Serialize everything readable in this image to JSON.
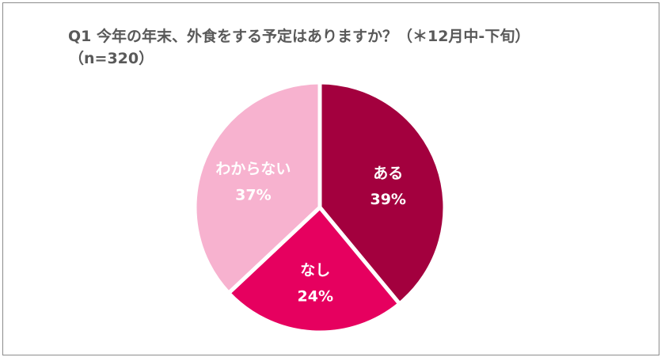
{
  "chart_data": {
    "type": "pie",
    "title": "Q1 今年の年末、外食をする予定はありますか？（＊12月中-下旬）",
    "subtitle": "（n=320）",
    "slices": [
      {
        "label": "ある",
        "value_label": "39%",
        "value": 39,
        "color": "#a3003e",
        "text_color": "#ffffff"
      },
      {
        "label": "なし",
        "value_label": "24%",
        "value": 24,
        "color": "#e6005f",
        "text_color": "#ffffff"
      },
      {
        "label": "わからない",
        "value_label": "37%",
        "value": 37,
        "color": "#f7b2cf",
        "text_color": "#ffffff"
      }
    ],
    "start": "12 o'clock",
    "direction": "clockwise",
    "legend": "none"
  }
}
